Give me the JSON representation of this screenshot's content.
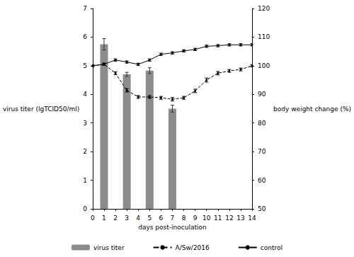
{
  "chart_data": {
    "type": "bar+line",
    "x_label": "days post-inoculation",
    "y_label": "virus titer (lgTCID50/ml)",
    "y2_label": "body weight change (%)",
    "xlim": [
      0,
      14
    ],
    "xticks": [
      0,
      1,
      2,
      3,
      4,
      5,
      6,
      7,
      8,
      9,
      10,
      11,
      12,
      13,
      14
    ],
    "ylim": [
      0,
      7
    ],
    "yticks": [
      0,
      1,
      2,
      3,
      4,
      5,
      6,
      7
    ],
    "y2lim": [
      50,
      120
    ],
    "y2ticks": [
      50,
      60,
      70,
      80,
      90,
      100,
      110,
      120
    ],
    "grid": false,
    "legend": "bottom",
    "series": [
      {
        "name": "virus titer",
        "type": "bar",
        "axis": "y",
        "color": "#8c8c8c",
        "x": [
          1,
          3,
          5,
          7
        ],
        "values": [
          5.75,
          4.7,
          4.83,
          3.5
        ],
        "errors": [
          0.2,
          0.07,
          0.1,
          0.12
        ]
      },
      {
        "name": "A/Sw/2016",
        "type": "line",
        "axis": "y2",
        "color": "#000000",
        "line_style": "dashed",
        "marker": "circle",
        "x": [
          0,
          1,
          2,
          3,
          4,
          5,
          6,
          7,
          8,
          9,
          10,
          11,
          12,
          13,
          14
        ],
        "values": [
          100,
          100.5,
          97.4,
          91.4,
          89.1,
          89.1,
          88.8,
          88.3,
          88.8,
          91.2,
          95,
          97.4,
          98.2,
          98.7,
          100
        ],
        "errors": [
          0.3,
          0.4,
          0.5,
          0.6,
          0.5,
          0.5,
          0.5,
          0.6,
          0.5,
          0.6,
          0.7,
          0.6,
          0.5,
          0.5,
          0.4
        ]
      },
      {
        "name": "control",
        "type": "line",
        "axis": "y2",
        "color": "#000000",
        "line_style": "solid",
        "marker": "circle",
        "x": [
          0,
          1,
          2,
          3,
          4,
          5,
          6,
          7,
          8,
          9,
          10,
          11,
          12,
          13,
          14
        ],
        "values": [
          100,
          100.5,
          102,
          101.3,
          100.5,
          102,
          104,
          104.5,
          105.2,
          105.7,
          106.8,
          107,
          107.3,
          107.3,
          107.3
        ],
        "errors": [
          0.3,
          0.4,
          0.4,
          0.4,
          0.4,
          0.4,
          0.4,
          0.4,
          0.4,
          0.4,
          0.4,
          0.4,
          0.4,
          0.4,
          0.4
        ]
      }
    ]
  }
}
